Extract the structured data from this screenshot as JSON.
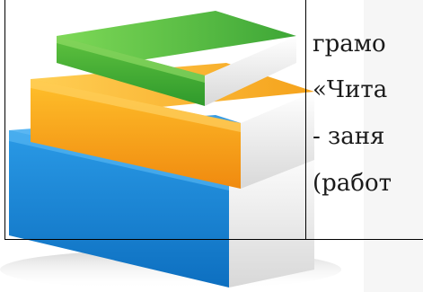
{
  "table": {
    "text_lines": [
      "грамо",
      "«Чита",
      "- заня",
      "(работ"
    ]
  },
  "illustration": {
    "subject": "stack-of-books-icon",
    "colors": {
      "top_book": "#3dab3a",
      "middle_book": "#f2a21c",
      "bottom_book": "#1e88d6",
      "pages": "#f2f2f2"
    }
  }
}
